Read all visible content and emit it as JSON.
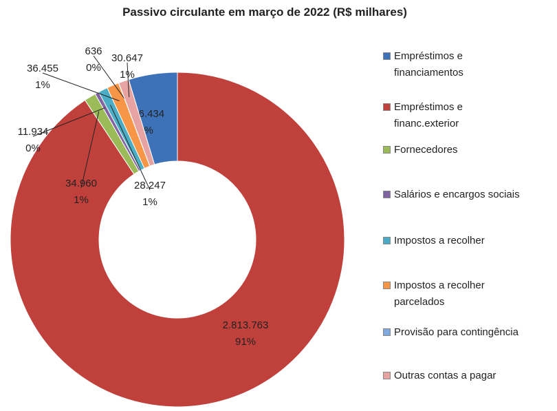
{
  "chart_data": {
    "type": "doughnut",
    "title": "Passivo circulante em março de 2022 (R$ milhares)",
    "categories": [
      "Empréstimos e financiamentos",
      "Empréstimos e financ.exterior",
      "Fornecedores",
      "Salários e encargos sociais",
      "Impostos a recolher",
      "Impostos a recolher parcelados",
      "Provisão para contingência",
      "Outras contas a pagar"
    ],
    "values": [
      146434,
      2813763,
      34960,
      11934,
      28247,
      36455,
      636,
      30647
    ],
    "value_labels": [
      "146.434",
      "2.813.763",
      "34.960",
      "11.934",
      "28.247",
      "36.455",
      "636",
      "30.647"
    ],
    "percent_labels": [
      "5%",
      "91%",
      "1%",
      "0%",
      "1%",
      "1%",
      "0%",
      "1%"
    ],
    "colors": [
      "#3d72b8",
      "#c0403c",
      "#9bbb59",
      "#8064a2",
      "#4bacc6",
      "#f79646",
      "#7fa9dc",
      "#e6a3a1"
    ],
    "legend": "right"
  }
}
